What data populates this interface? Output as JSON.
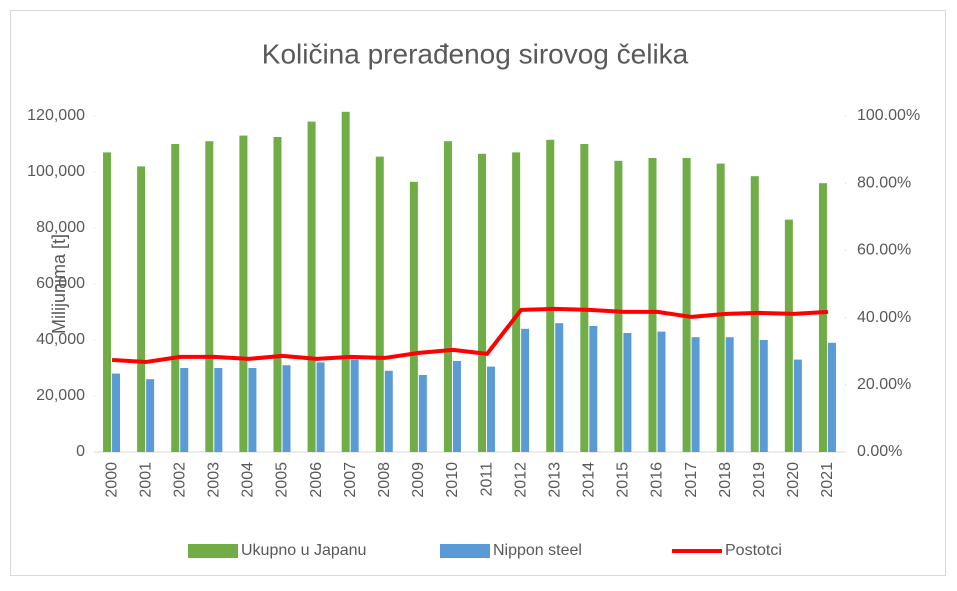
{
  "chart_data": {
    "type": "bar",
    "title": "Količina prerađenog  sirovog čelika",
    "ylabel": "Milijunima [t]",
    "categories": [
      "2000",
      "2001",
      "2002",
      "2003",
      "2004",
      "2005",
      "2006",
      "2007",
      "2008",
      "2009",
      "2010",
      "2011",
      "2012",
      "2013",
      "2014",
      "2015",
      "2016",
      "2017",
      "2018",
      "2019",
      "2020",
      "2021"
    ],
    "series": [
      {
        "name": "Ukupno u Japanu",
        "color": "#70ad47",
        "type": "bar",
        "values": [
          107000,
          102000,
          110000,
          111000,
          113000,
          112500,
          118000,
          121500,
          105500,
          96500,
          111000,
          106500,
          107000,
          111500,
          110000,
          104000,
          105000,
          105000,
          103000,
          98500,
          83000,
          96000
        ]
      },
      {
        "name": "Nippon steel",
        "color": "#5b9bd5",
        "type": "bar",
        "values": [
          28000,
          26000,
          30000,
          30000,
          30000,
          31000,
          32000,
          33000,
          29000,
          27500,
          32500,
          30500,
          44000,
          46000,
          45000,
          42500,
          43000,
          41000,
          41000,
          40000,
          33000,
          39000
        ]
      },
      {
        "name": "Postotci",
        "color": "#ff0000",
        "type": "line",
        "axis": "y2",
        "values": [
          27.4,
          26.8,
          28.3,
          28.3,
          27.7,
          28.6,
          27.7,
          28.3,
          28.0,
          29.5,
          30.4,
          29.2,
          42.3,
          42.6,
          42.3,
          41.7,
          41.7,
          40.2,
          41.1,
          41.4,
          41.1,
          41.7
        ]
      }
    ],
    "ylim": [
      0,
      120000
    ],
    "yticks": [
      0,
      {
        "value": 20000,
        "label": "20,000"
      },
      {
        "value": 40000,
        "label": "40,000"
      },
      {
        "value": 60000,
        "label": "60,000"
      },
      {
        "value": 80000,
        "label": "80,000"
      },
      {
        "value": 100000,
        "label": "100,000"
      },
      {
        "value": 120000,
        "label": "120,000"
      }
    ],
    "y2lim": [
      0,
      100
    ],
    "y2ticks": [
      {
        "value": 0,
        "label": "0.00%"
      },
      {
        "value": 20,
        "label": "20.00%"
      },
      {
        "value": 40,
        "label": "40.00%"
      },
      {
        "value": 60,
        "label": "60.00%"
      },
      {
        "value": 80,
        "label": "80.00%"
      },
      {
        "value": 100,
        "label": "100.00%"
      }
    ],
    "legend": "bottom"
  }
}
